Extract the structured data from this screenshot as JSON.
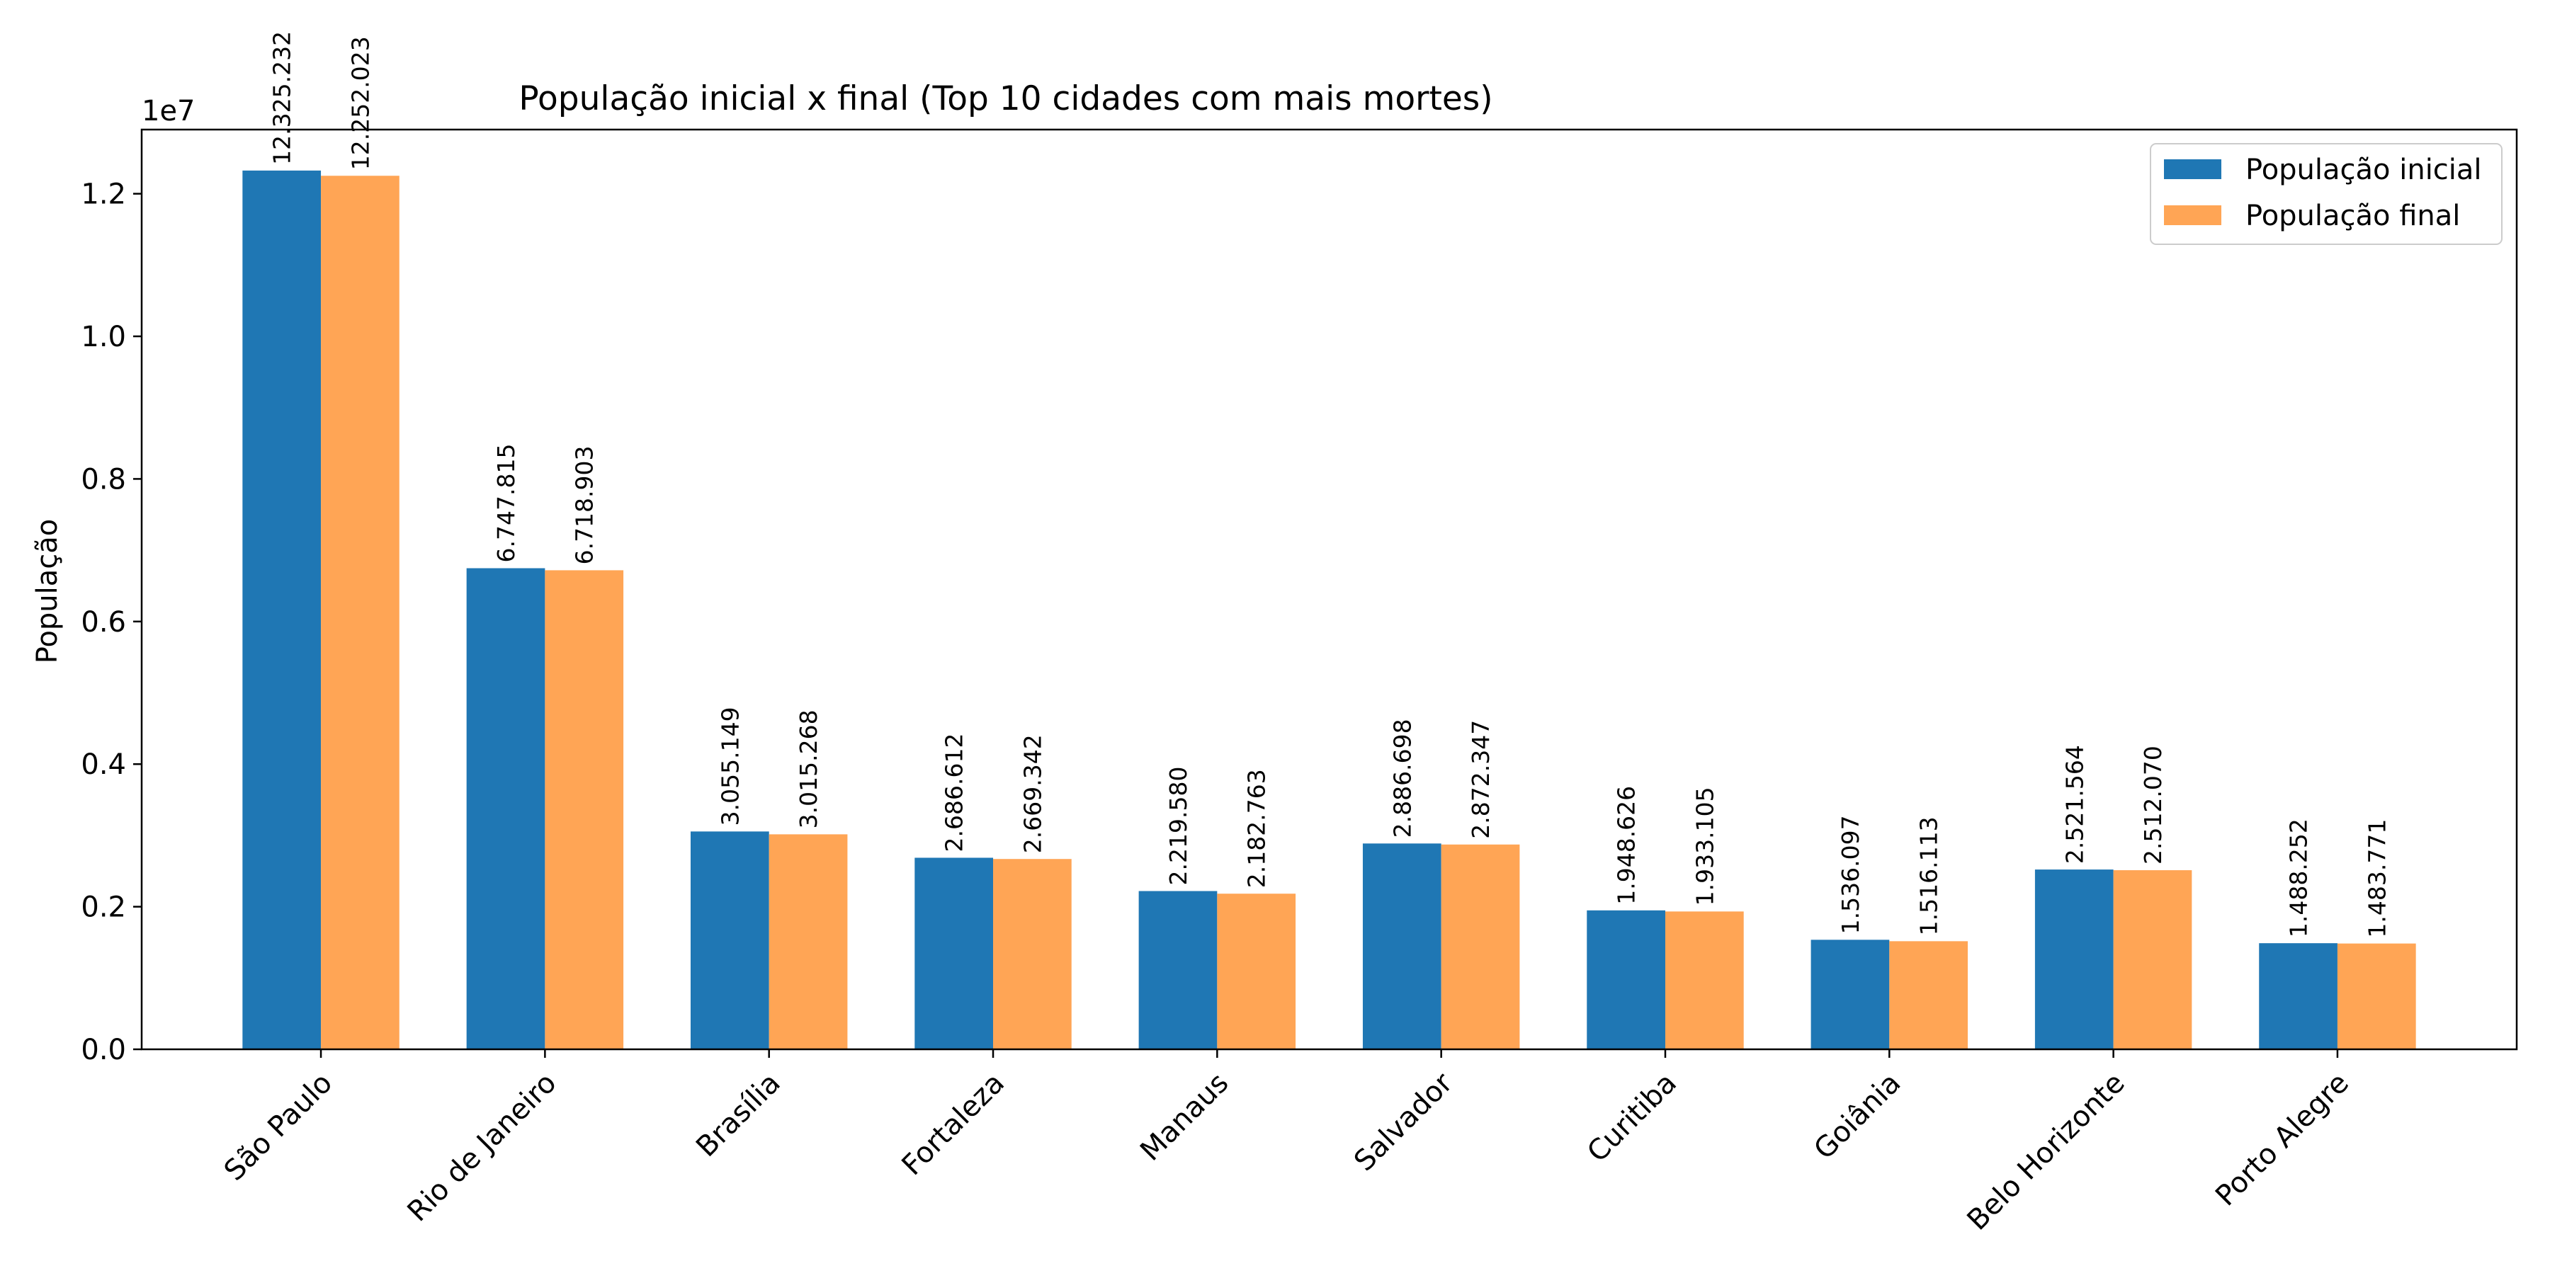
{
  "chart_data": {
    "type": "bar",
    "title": "População inicial x final (Top 10 cidades com mais mortes)",
    "xlabel": "",
    "ylabel": "População",
    "offset_label": "1e7",
    "ylim": [
      0,
      12900000
    ],
    "yticks": [
      0,
      2000000,
      4000000,
      6000000,
      8000000,
      10000000,
      12000000
    ],
    "ytick_labels": [
      "0.0",
      "0.2",
      "0.4",
      "0.6",
      "0.8",
      "1.0",
      "1.2"
    ],
    "categories": [
      "São Paulo",
      "Rio de Janeiro",
      "Brasília",
      "Fortaleza",
      "Manaus",
      "Salvador",
      "Curitiba",
      "Goiânia",
      "Belo Horizonte",
      "Porto Alegre"
    ],
    "series": [
      {
        "name": "População inicial",
        "color": "#1f77b4",
        "values": [
          12325232,
          6747815,
          3055149,
          2686612,
          2219580,
          2886698,
          1948626,
          1536097,
          2521564,
          1488252
        ],
        "labels": [
          "12.325.232",
          "6.747.815",
          "3.055.149",
          "2.686.612",
          "2.219.580",
          "2.886.698",
          "1.948.626",
          "1.536.097",
          "2.521.564",
          "1.488.252"
        ]
      },
      {
        "name": "População final",
        "color": "#ffa555",
        "values": [
          12252023,
          6718903,
          3015268,
          2669342,
          2182763,
          2872347,
          1933105,
          1516113,
          2512070,
          1483771
        ],
        "labels": [
          "12.252.023",
          "6.718.903",
          "3.015.268",
          "2.669.342",
          "2.182.763",
          "2.872.347",
          "1.933.105",
          "1.516.113",
          "2.512.070",
          "1.483.771"
        ]
      }
    ],
    "legend_position": "top-right",
    "grid": false
  }
}
